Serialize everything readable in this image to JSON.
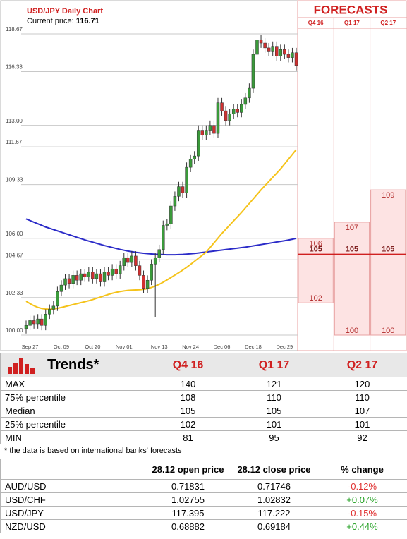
{
  "chart_data": {
    "type": "candlestick",
    "title": "USD/JPY Daily Chart",
    "current_price_label": "Current price:",
    "current_price": "116.71",
    "categories": [
      null,
      "Sep 27",
      null,
      null,
      null,
      null,
      null,
      null,
      null,
      "Oct 09",
      null,
      null,
      null,
      null,
      null,
      null,
      null,
      "Oct 20",
      null,
      null,
      null,
      null,
      null,
      null,
      null,
      "Nov 01",
      null,
      null,
      null,
      null,
      null,
      null,
      null,
      null,
      "Nov 13",
      null,
      null,
      null,
      null,
      null,
      null,
      null,
      "Nov 24",
      null,
      null,
      null,
      null,
      null,
      null,
      null,
      "Dec 06",
      null,
      null,
      null,
      null,
      null,
      null,
      null,
      "Dec 18",
      null,
      null,
      null,
      null,
      null,
      null,
      null,
      "Dec 29",
      null,
      null,
      null
    ],
    "open": [
      100.4,
      100.6,
      100.9,
      100.7,
      101.0,
      100.6,
      101.3,
      101.6,
      101.8,
      102.7,
      103.1,
      103.5,
      103.2,
      103.7,
      103.4,
      103.8,
      103.6,
      103.9,
      103.5,
      103.8,
      103.3,
      103.9,
      103.7,
      104.1,
      103.8,
      104.3,
      104.8,
      104.5,
      104.9,
      104.3,
      103.7,
      102.9,
      103.4,
      104.4,
      104.8,
      105.3,
      106.8,
      106.9,
      108.0,
      108.6,
      109.2,
      108.8,
      110.4,
      110.9,
      111.1,
      112.7,
      112.4,
      112.7,
      113.0,
      112.5,
      114.4,
      113.9,
      113.3,
      113.7,
      114.0,
      113.8,
      114.3,
      114.7,
      115.3,
      117.4,
      118.3,
      118.1,
      117.8,
      117.6,
      117.9,
      117.3,
      117.7,
      117.4,
      117.2,
      117.5
    ],
    "high": [
      100.9,
      101.2,
      101.2,
      101.3,
      101.3,
      101.6,
      101.9,
      102.1,
      103.0,
      103.4,
      103.8,
      103.8,
      104.0,
      104.0,
      104.1,
      104.1,
      104.2,
      104.2,
      104.1,
      104.1,
      104.2,
      104.2,
      104.4,
      104.4,
      104.6,
      105.1,
      105.1,
      105.2,
      105.2,
      104.6,
      104.0,
      103.7,
      104.7,
      105.1,
      105.6,
      107.1,
      107.2,
      108.3,
      108.9,
      109.5,
      109.5,
      110.7,
      111.2,
      111.4,
      113.0,
      113.0,
      113.0,
      113.3,
      113.3,
      114.7,
      114.7,
      114.2,
      114.0,
      114.3,
      114.3,
      114.6,
      115.0,
      115.6,
      117.7,
      118.6,
      118.6,
      118.4,
      118.1,
      118.2,
      118.2,
      118.0,
      118.0,
      117.7,
      117.8,
      117.8
    ],
    "low": [
      100.1,
      100.3,
      100.4,
      100.4,
      100.3,
      100.3,
      101.0,
      101.3,
      101.5,
      102.4,
      102.8,
      102.9,
      102.9,
      103.1,
      103.1,
      103.3,
      103.3,
      103.2,
      103.2,
      103.0,
      103.0,
      103.4,
      103.4,
      103.5,
      103.5,
      104.0,
      104.2,
      104.2,
      104.0,
      103.4,
      102.6,
      102.6,
      103.1,
      101.1,
      104.5,
      105.0,
      106.5,
      106.6,
      107.7,
      108.3,
      108.5,
      108.5,
      110.1,
      110.6,
      110.8,
      112.1,
      112.1,
      112.4,
      112.2,
      112.2,
      113.6,
      113.0,
      113.0,
      113.4,
      113.5,
      113.5,
      114.0,
      114.4,
      115.0,
      117.1,
      117.8,
      117.5,
      117.3,
      117.3,
      117.0,
      117.0,
      117.1,
      116.9,
      116.9,
      116.41
    ],
    "close": [
      100.6,
      100.9,
      100.7,
      101.0,
      100.6,
      101.3,
      101.6,
      101.8,
      102.7,
      103.1,
      103.5,
      103.2,
      103.7,
      103.4,
      103.8,
      103.6,
      103.9,
      103.5,
      103.8,
      103.3,
      103.9,
      103.7,
      104.1,
      103.8,
      104.3,
      104.8,
      104.5,
      104.9,
      104.3,
      103.7,
      102.9,
      103.4,
      104.4,
      104.8,
      105.3,
      106.8,
      106.9,
      108.0,
      108.6,
      109.2,
      108.8,
      110.4,
      110.9,
      111.1,
      112.7,
      112.4,
      112.7,
      113.0,
      112.5,
      114.4,
      113.9,
      113.3,
      113.7,
      114.0,
      113.8,
      114.3,
      114.7,
      115.3,
      117.4,
      118.3,
      118.1,
      117.8,
      117.6,
      117.9,
      117.3,
      117.7,
      117.4,
      117.2,
      117.5,
      116.71
    ],
    "up_color": "#3a9a3a",
    "down_color": "#d03030",
    "series": [
      {
        "color": "#2b2bc8",
        "values": [
          107.2,
          107.1,
          107.0,
          106.9,
          106.8,
          106.7,
          106.62,
          106.54,
          106.46,
          106.38,
          106.3,
          106.22,
          106.14,
          106.06,
          105.98,
          105.9,
          105.83,
          105.76,
          105.69,
          105.62,
          105.55,
          105.49,
          105.43,
          105.37,
          105.31,
          105.26,
          105.21,
          105.17,
          105.13,
          105.1,
          105.07,
          105.05,
          105.03,
          105.01,
          105.0,
          104.99,
          104.98,
          104.98,
          104.98,
          104.99,
          105.0,
          105.02,
          105.04,
          105.06,
          105.09,
          105.12,
          105.15,
          105.18,
          105.21,
          105.24,
          105.27,
          105.3,
          105.33,
          105.36,
          105.39,
          105.42,
          105.45,
          105.49,
          105.53,
          105.57,
          105.61,
          105.65,
          105.69,
          105.73,
          105.77,
          105.81,
          105.85,
          105.89,
          105.94,
          106.0
        ]
      },
      {
        "color": "#f5c31a",
        "values": [
          102.1,
          101.95,
          101.82,
          101.72,
          101.65,
          101.61,
          101.6,
          101.62,
          101.66,
          101.71,
          101.77,
          101.83,
          101.89,
          101.95,
          102.01,
          102.07,
          102.13,
          102.2,
          102.28,
          102.36,
          102.44,
          102.52,
          102.59,
          102.65,
          102.7,
          102.74,
          102.77,
          102.79,
          102.8,
          102.81,
          102.83,
          102.88,
          102.95,
          103.04,
          103.15,
          103.28,
          103.42,
          103.57,
          103.72,
          103.87,
          104.03,
          104.2,
          104.38,
          104.57,
          104.76,
          104.95,
          105.14,
          105.43,
          105.72,
          106.01,
          106.3,
          106.56,
          106.82,
          107.08,
          107.34,
          107.6,
          107.88,
          108.16,
          108.44,
          108.72,
          109.0,
          109.26,
          109.52,
          109.78,
          110.04,
          110.3,
          110.6,
          110.9,
          111.2,
          111.5
        ]
      }
    ],
    "ylim": [
      100,
      118.67
    ],
    "yticks": [
      118.67,
      116.33,
      {
        "value": 113,
        "label": "113.00"
      },
      111.67,
      109.33,
      {
        "value": 106,
        "label": "106.00"
      },
      104.67,
      102.33,
      {
        "value": 100,
        "label": "100.00"
      }
    ],
    "grid": true
  },
  "forecasts": {
    "title": "FORECASTS",
    "quarters": [
      "Q4 16",
      "Q1 17",
      "Q2 17"
    ],
    "high": [
      106,
      107,
      109
    ],
    "median": [
      105,
      105,
      105
    ],
    "low": [
      102,
      100,
      100
    ],
    "median_color": "#d02020"
  },
  "trends": {
    "title": "Trends*",
    "columns": [
      "Q4 16",
      "Q1 17",
      "Q2 17"
    ],
    "rows": [
      [
        "MAX",
        "140",
        "121",
        "120"
      ],
      [
        "75% percentile",
        "108",
        "110",
        "110"
      ],
      [
        "Median",
        "105",
        "105",
        "107"
      ],
      [
        "25% percentile",
        "102",
        "101",
        "101"
      ],
      [
        "MIN",
        "81",
        "95",
        "92"
      ]
    ]
  },
  "footnote": "* the data is based on international banks' forecasts",
  "prices": {
    "columns": [
      "28.12 open price",
      "28.12 close price",
      "% change"
    ],
    "rows": [
      [
        "AUD/USD",
        "0.71831",
        "0.71746",
        "-0.12%"
      ],
      [
        "USD/CHF",
        "1.02755",
        "1.02832",
        "+0.07%"
      ],
      [
        "USD/JPY",
        "117.395",
        "117.222",
        "-0.15%"
      ],
      [
        "NZD/USD",
        "0.68882",
        "0.69184",
        "+0.44%"
      ]
    ],
    "negative_color": "#e03030",
    "positive_color": "#22a022"
  }
}
